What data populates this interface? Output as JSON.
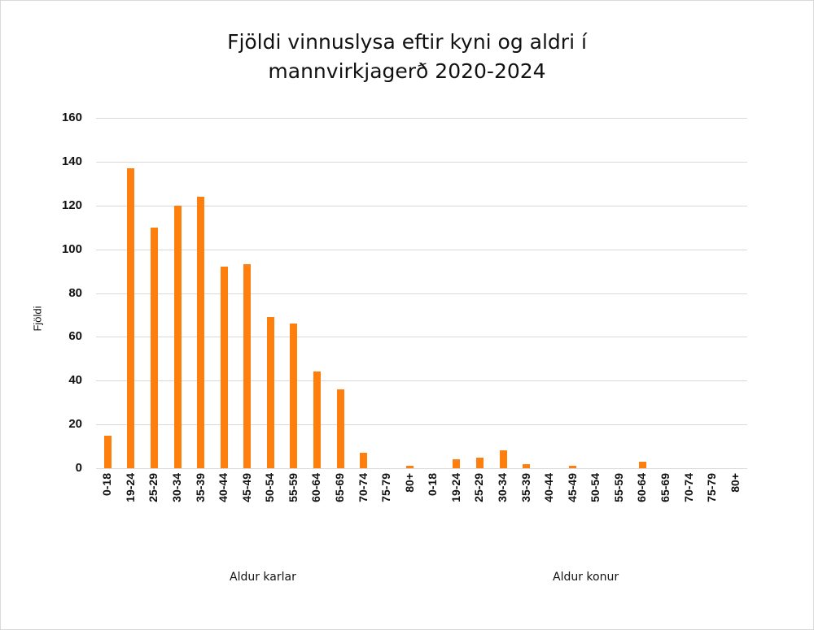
{
  "chart_data": {
    "type": "bar",
    "title": "Fjöldi vinnuslysa eftir kyni og aldri í mannvirkjagerð 2020-2024",
    "title_lines": [
      "Fjöldi vinnuslysa eftir kyni og aldri í",
      "mannvirkjagerð 2020-2024"
    ],
    "xlabel_groups": [
      "Aldur karlar",
      "Aldur konur"
    ],
    "ylabel": "Fjöldi",
    "ylim": [
      0,
      160
    ],
    "yticks": [
      0,
      20,
      40,
      60,
      80,
      100,
      120,
      140,
      160
    ],
    "grid": true,
    "legend": "none",
    "bar_color": "#ff7f0e",
    "categories": [
      "0-18",
      "19-24",
      "25-29",
      "30-34",
      "35-39",
      "40-44",
      "45-49",
      "50-54",
      "55-59",
      "60-64",
      "65-69",
      "70-74",
      "75-79",
      "80+",
      "0-18",
      "19-24",
      "25-29",
      "30-34",
      "35-39",
      "40-44",
      "45-49",
      "50-54",
      "55-59",
      "60-64",
      "65-69",
      "70-74",
      "75-79",
      "80+"
    ],
    "groups": [
      {
        "name": "Aldur karlar",
        "categories": [
          "0-18",
          "19-24",
          "25-29",
          "30-34",
          "35-39",
          "40-44",
          "45-49",
          "50-54",
          "55-59",
          "60-64",
          "65-69",
          "70-74",
          "75-79",
          "80+"
        ],
        "values": [
          15,
          137,
          110,
          120,
          124,
          92,
          93,
          69,
          66,
          44,
          36,
          7,
          0,
          1
        ]
      },
      {
        "name": "Aldur konur",
        "categories": [
          "0-18",
          "19-24",
          "25-29",
          "30-34",
          "35-39",
          "40-44",
          "45-49",
          "50-54",
          "55-59",
          "60-64",
          "65-69",
          "70-74",
          "75-79",
          "80+"
        ],
        "values": [
          0,
          4,
          5,
          8,
          2,
          0,
          1,
          0,
          0,
          3,
          0,
          0,
          0,
          0
        ]
      }
    ],
    "values": [
      15,
      137,
      110,
      120,
      124,
      92,
      93,
      69,
      66,
      44,
      36,
      7,
      0,
      1,
      0,
      4,
      5,
      8,
      2,
      0,
      1,
      0,
      0,
      3,
      0,
      0,
      0,
      0
    ]
  }
}
